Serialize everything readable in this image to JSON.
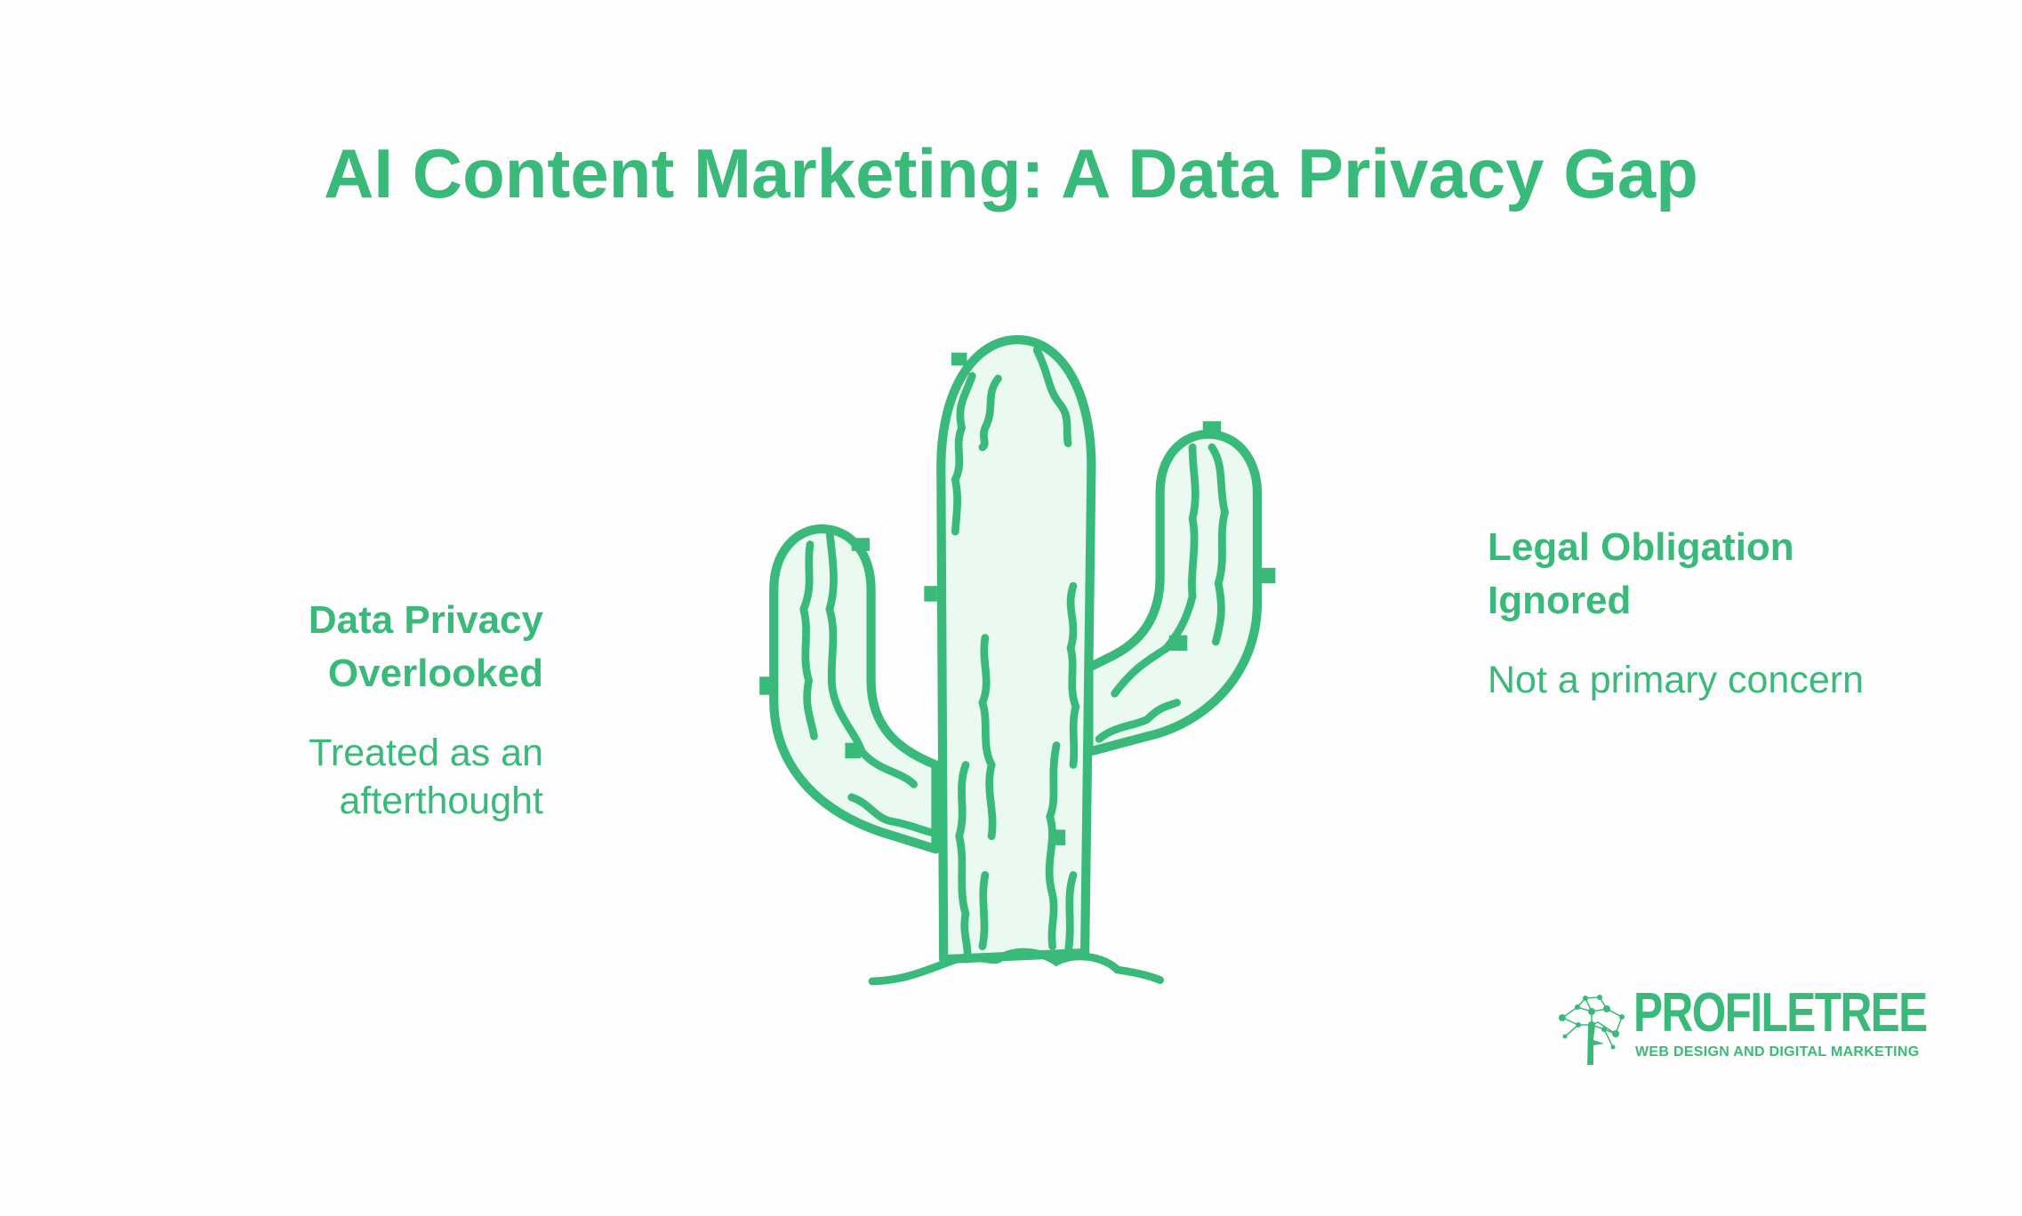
{
  "title": "AI Content Marketing: A Data Privacy Gap",
  "left_point": {
    "heading_line1": "Data Privacy",
    "heading_line2": "Overlooked",
    "desc_line1": "Treated as an",
    "desc_line2": "afterthought"
  },
  "right_point": {
    "heading_line1": "Legal Obligation",
    "heading_line2": "Ignored",
    "desc": "Not a primary concern"
  },
  "logo": {
    "name": "PROFILETREE",
    "tagline": "WEB DESIGN AND DIGITAL MARKETING"
  },
  "colors": {
    "accent": "#3aba7a",
    "cactus_fill": "#eafaf1",
    "background": "#fdfdfd"
  },
  "illustration": "cactus-icon"
}
